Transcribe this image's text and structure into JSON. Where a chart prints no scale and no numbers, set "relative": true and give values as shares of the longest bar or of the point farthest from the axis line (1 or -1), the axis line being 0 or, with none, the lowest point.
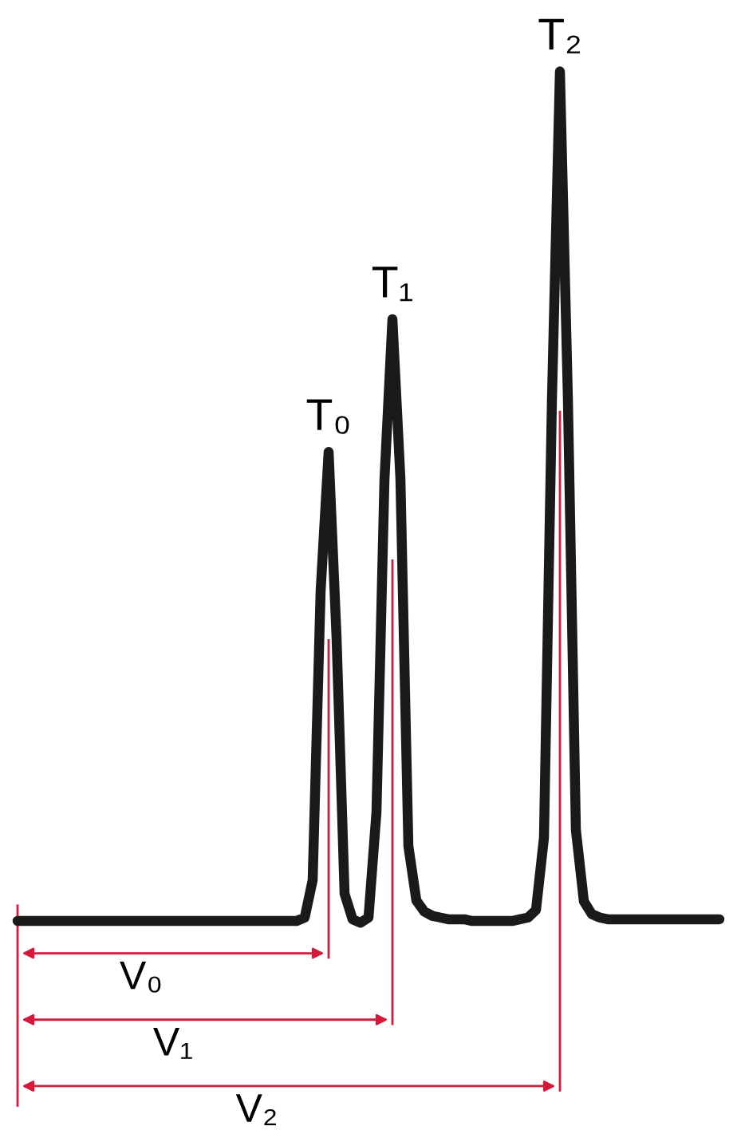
{
  "chart_data": {
    "type": "line",
    "relative": true,
    "tick_labels": false,
    "line_style": "solid",
    "categories": [
      null,
      null,
      null,
      null,
      null,
      null,
      null,
      null,
      null,
      null,
      null,
      null,
      null,
      null,
      null,
      null,
      null,
      null,
      null,
      null,
      null,
      null,
      null,
      null,
      null,
      null,
      null,
      null,
      null,
      null,
      null,
      null,
      null,
      null,
      null,
      null,
      null,
      null,
      null,
      null,
      null,
      null,
      null,
      null,
      null,
      null,
      null,
      null,
      null,
      null,
      null,
      null,
      null,
      null,
      null,
      null,
      null,
      null,
      null,
      null,
      null,
      null,
      null,
      null,
      null,
      null,
      null,
      null,
      null,
      null,
      null,
      null,
      null,
      null,
      null,
      null,
      null,
      null,
      null,
      null,
      null,
      null,
      null,
      null,
      null,
      null,
      null,
      null,
      null
    ],
    "series": [
      {
        "color": "#1a1a1a",
        "values": [
          0.002,
          0.002,
          0.002,
          0.002,
          0.002,
          0.002,
          0.002,
          0.002,
          0.002,
          0.002,
          0.002,
          0.002,
          0.002,
          0.002,
          0.002,
          0.002,
          0.002,
          0.002,
          0.002,
          0.002,
          0.002,
          0.002,
          0.002,
          0.002,
          0.002,
          0.002,
          0.002,
          0.002,
          0.002,
          0.002,
          0.002,
          0.002,
          0.002,
          0.002,
          0.002,
          0.002,
          0.006,
          0.05,
          0.39,
          0.553,
          0.334,
          0.034,
          0.004,
          0,
          0.006,
          0.13,
          0.52,
          0.709,
          0.522,
          0.09,
          0.026,
          0.013,
          0.008,
          0.006,
          0.004,
          0.004,
          0.004,
          0.002,
          0.002,
          0.002,
          0.002,
          0.002,
          0.002,
          0.004,
          0.006,
          0.015,
          0.1,
          0.615,
          1,
          0.615,
          0.109,
          0.025,
          0.01,
          0.006,
          0.004,
          0.004,
          0.004,
          0.004,
          0.004,
          0.004,
          0.004,
          0.004,
          0.004,
          0.004,
          0.004,
          0.004,
          0.004,
          0.004,
          0.004
        ]
      }
    ],
    "annotations": [
      "T₀",
      "T₁",
      "T₂",
      "V₀",
      "V₁",
      "V₂"
    ]
  }
}
